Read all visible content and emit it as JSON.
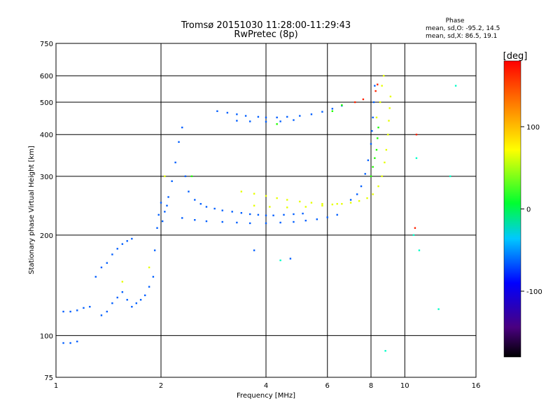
{
  "title": {
    "line1": "Tromsø 20151030 11:28:00-11:29:43",
    "line2": "RwPretec (8p)"
  },
  "phase_box": {
    "heading": "Phase",
    "o_line": "mean, sd,O: -95.2, 14.5",
    "x_line": "mean, sd,X:  86.5, 19.1"
  },
  "colorbar": {
    "unit": "[deg]",
    "ticks": [
      {
        "label": "100",
        "value": 100
      },
      {
        "label": "0",
        "value": 0
      },
      {
        "label": "-100",
        "value": -100
      }
    ],
    "range": [
      -180,
      180
    ]
  },
  "chart_data": {
    "type": "scatter",
    "title": "Tromsø 20151030 11:28:00-11:29:43",
    "subtitle": "RwPretec (8p)",
    "xlabel": "Frequency [MHz]",
    "ylabel": "Stationary phase Virtual Height [km]",
    "xscale": "log",
    "yscale": "log",
    "xlim": [
      1,
      16
    ],
    "ylim": [
      75,
      750
    ],
    "grid": true,
    "x_ticks": [
      {
        "label": "1",
        "value": 1
      },
      {
        "label": "2",
        "value": 2
      },
      {
        "label": "4",
        "value": 4
      },
      {
        "label": "6",
        "value": 6
      },
      {
        "label": "8",
        "value": 8
      },
      {
        "label": "10",
        "value": 10
      },
      {
        "label": "16",
        "value": 16
      }
    ],
    "y_ticks": [
      {
        "label": "750",
        "value": 750
      },
      {
        "label": "600",
        "value": 600
      },
      {
        "label": "500",
        "value": 500
      },
      {
        "label": "400",
        "value": 400
      },
      {
        "label": "300",
        "value": 300
      },
      {
        "label": "200",
        "value": 200
      },
      {
        "label": "100",
        "value": 100
      },
      {
        "label": "75",
        "value": 75
      }
    ],
    "series": [
      {
        "phase_deg": -100,
        "points": [
          [
            1.05,
            118
          ],
          [
            1.1,
            118
          ],
          [
            1.15,
            119
          ],
          [
            1.2,
            121
          ],
          [
            1.25,
            122
          ],
          [
            1.05,
            95
          ],
          [
            1.1,
            95
          ],
          [
            1.15,
            96
          ],
          [
            1.3,
            150
          ],
          [
            1.35,
            160
          ],
          [
            1.4,
            165
          ],
          [
            1.45,
            175
          ],
          [
            1.5,
            182
          ],
          [
            1.55,
            188
          ],
          [
            1.6,
            192
          ],
          [
            1.65,
            195
          ],
          [
            1.35,
            115
          ],
          [
            1.4,
            118
          ],
          [
            1.45,
            125
          ],
          [
            1.5,
            130
          ],
          [
            1.55,
            135
          ],
          [
            1.6,
            128
          ],
          [
            1.65,
            122
          ],
          [
            1.7,
            125
          ],
          [
            1.75,
            128
          ],
          [
            1.8,
            132
          ],
          [
            1.85,
            140
          ],
          [
            1.9,
            150
          ],
          [
            1.92,
            180
          ],
          [
            1.95,
            210
          ],
          [
            1.97,
            230
          ],
          [
            2.0,
            250
          ],
          [
            2.02,
            220
          ],
          [
            2.05,
            235
          ],
          [
            2.08,
            245
          ],
          [
            2.1,
            260
          ],
          [
            2.15,
            290
          ],
          [
            2.2,
            330
          ],
          [
            2.25,
            380
          ],
          [
            2.3,
            420
          ],
          [
            2.35,
            300
          ],
          [
            2.4,
            270
          ],
          [
            2.5,
            255
          ],
          [
            2.6,
            248
          ],
          [
            2.7,
            243
          ],
          [
            2.85,
            240
          ],
          [
            3.0,
            237
          ],
          [
            3.2,
            235
          ],
          [
            3.4,
            233
          ],
          [
            3.6,
            231
          ],
          [
            3.8,
            230
          ],
          [
            4.0,
            229
          ],
          [
            4.2,
            229
          ],
          [
            4.5,
            230
          ],
          [
            4.8,
            231
          ],
          [
            5.1,
            232
          ],
          [
            2.3,
            225
          ],
          [
            2.5,
            222
          ],
          [
            2.7,
            220
          ],
          [
            3.0,
            219
          ],
          [
            3.3,
            218
          ],
          [
            3.6,
            217
          ],
          [
            4.0,
            217
          ],
          [
            4.4,
            218
          ],
          [
            4.8,
            219
          ],
          [
            5.2,
            221
          ],
          [
            5.6,
            223
          ],
          [
            6.0,
            226
          ],
          [
            6.4,
            230
          ],
          [
            2.9,
            470
          ],
          [
            3.1,
            465
          ],
          [
            3.3,
            460
          ],
          [
            3.5,
            455
          ],
          [
            3.8,
            452
          ],
          [
            4.0,
            450
          ],
          [
            4.3,
            450
          ],
          [
            4.6,
            452
          ],
          [
            5.0,
            455
          ],
          [
            5.4,
            460
          ],
          [
            5.8,
            468
          ],
          [
            6.2,
            478
          ],
          [
            6.6,
            488
          ],
          [
            3.3,
            440
          ],
          [
            3.6,
            438
          ],
          [
            4.0,
            437
          ],
          [
            4.4,
            438
          ],
          [
            4.8,
            442
          ],
          [
            7.0,
            255
          ],
          [
            7.3,
            265
          ],
          [
            7.5,
            280
          ],
          [
            7.7,
            305
          ],
          [
            7.85,
            335
          ],
          [
            8.0,
            375
          ],
          [
            8.05,
            410
          ],
          [
            8.1,
            450
          ],
          [
            8.15,
            500
          ],
          [
            8.2,
            560
          ],
          [
            3.7,
            180
          ],
          [
            4.7,
            170
          ]
        ]
      },
      {
        "phase_deg": 95,
        "points": [
          [
            3.4,
            270
          ],
          [
            3.7,
            266
          ],
          [
            4.0,
            262
          ],
          [
            4.3,
            258
          ],
          [
            4.6,
            255
          ],
          [
            5.0,
            252
          ],
          [
            5.4,
            250
          ],
          [
            5.8,
            248
          ],
          [
            6.2,
            247
          ],
          [
            6.6,
            248
          ],
          [
            7.0,
            250
          ],
          [
            7.4,
            253
          ],
          [
            7.8,
            258
          ],
          [
            8.1,
            265
          ],
          [
            8.4,
            280
          ],
          [
            8.6,
            300
          ],
          [
            8.75,
            330
          ],
          [
            8.85,
            360
          ],
          [
            8.95,
            400
          ],
          [
            9.0,
            440
          ],
          [
            9.05,
            480
          ],
          [
            9.1,
            520
          ],
          [
            3.7,
            245
          ],
          [
            4.1,
            243
          ],
          [
            4.6,
            242
          ],
          [
            5.2,
            243
          ],
          [
            5.8,
            245
          ],
          [
            6.4,
            248
          ],
          [
            8.3,
            450
          ],
          [
            8.5,
            500
          ],
          [
            8.6,
            560
          ],
          [
            8.7,
            600
          ],
          [
            1.55,
            145
          ],
          [
            1.85,
            160
          ],
          [
            2.05,
            300
          ]
        ]
      },
      {
        "phase_deg": 35,
        "points": [
          [
            4.3,
            430
          ],
          [
            6.2,
            470
          ],
          [
            6.6,
            490
          ],
          [
            8.0,
            300
          ],
          [
            8.1,
            320
          ],
          [
            8.2,
            340
          ],
          [
            8.3,
            360
          ],
          [
            8.35,
            390
          ],
          [
            8.4,
            420
          ],
          [
            2.45,
            300
          ]
        ]
      },
      {
        "phase_deg": 170,
        "points": [
          [
            7.2,
            500
          ],
          [
            7.6,
            510
          ],
          [
            8.25,
            540
          ],
          [
            8.35,
            565
          ],
          [
            10.7,
            210
          ],
          [
            10.8,
            400
          ]
        ]
      },
      {
        "phase_deg": -35,
        "points": [
          [
            4.4,
            168
          ],
          [
            8.8,
            90
          ],
          [
            10.6,
            200
          ],
          [
            10.8,
            340
          ],
          [
            11.0,
            180
          ],
          [
            12.5,
            120
          ],
          [
            13.5,
            300
          ],
          [
            14.0,
            560
          ]
        ]
      }
    ]
  }
}
